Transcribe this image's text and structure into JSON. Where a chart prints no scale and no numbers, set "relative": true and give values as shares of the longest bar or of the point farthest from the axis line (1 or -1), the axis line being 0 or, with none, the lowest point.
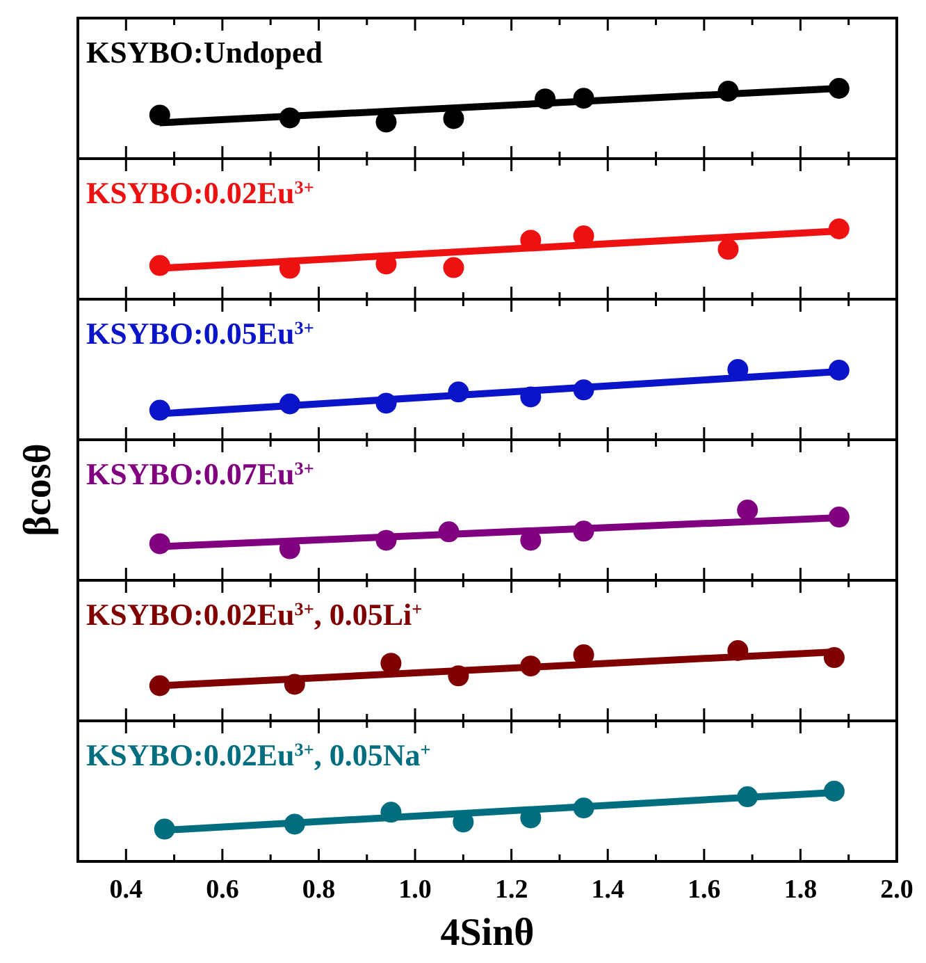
{
  "chart_data": [
    {
      "type": "scatter",
      "relative": true,
      "title": "KSYBO:Undoped",
      "marker": "circle",
      "tick_labels": false,
      "xlim": [
        0.3,
        2.0
      ],
      "xticks": [
        {
          "value": 0.3,
          "label": null
        },
        0.4,
        {
          "value": 0.5,
          "label": null
        },
        0.6,
        {
          "value": 0.7,
          "label": null
        },
        0.8,
        {
          "value": 0.9,
          "label": null
        },
        1,
        {
          "value": 1.1,
          "label": null
        },
        1.2,
        {
          "value": 1.3,
          "label": null
        },
        1.4,
        {
          "value": 1.5,
          "label": null
        },
        1.6,
        {
          "value": 1.7,
          "label": null
        },
        1.8,
        {
          "value": 1.9,
          "label": null
        },
        2
      ],
      "series": [
        {
          "color": "#000000",
          "x": [
            0.47,
            0.74,
            0.94,
            1.08,
            1.27,
            1.35,
            1.65,
            1.88
          ],
          "values": [
            0.62,
            0.58,
            0.52,
            0.57,
            0.85,
            0.86,
            0.96,
            1.0
          ]
        },
        {
          "type": "line",
          "marker": "none",
          "color": "#000000",
          "x": [
            0.47,
            1.88
          ],
          "values": [
            0.51,
            1.0
          ]
        }
      ]
    },
    {
      "type": "scatter",
      "relative": true,
      "title": "KSYBO:0.02Eu$^{3+}$",
      "marker": "circle",
      "tick_labels": false,
      "xlim": [
        0.3,
        2.0
      ],
      "xticks": [
        {
          "value": 0.3,
          "label": null
        },
        0.4,
        {
          "value": 0.5,
          "label": null
        },
        0.6,
        {
          "value": 0.7,
          "label": null
        },
        0.8,
        {
          "value": 0.9,
          "label": null
        },
        1,
        {
          "value": 1.1,
          "label": null
        },
        1.2,
        {
          "value": 1.3,
          "label": null
        },
        1.4,
        {
          "value": 1.5,
          "label": null
        },
        1.6,
        {
          "value": 1.7,
          "label": null
        },
        1.8,
        {
          "value": 1.9,
          "label": null
        },
        2
      ],
      "series": [
        {
          "color": "#ee1111",
          "x": [
            0.47,
            0.74,
            0.94,
            1.08,
            1.24,
            1.35,
            1.65,
            1.88
          ],
          "values": [
            0.48,
            0.44,
            0.5,
            0.45,
            0.84,
            0.9,
            0.71,
            1.0
          ]
        },
        {
          "type": "line",
          "marker": "none",
          "color": "#ee1111",
          "x": [
            0.47,
            1.88
          ],
          "values": [
            0.44,
            0.97
          ]
        }
      ]
    },
    {
      "type": "scatter",
      "relative": true,
      "title": "KSYBO:0.05Eu$^{3+}$",
      "marker": "circle",
      "tick_labels": false,
      "xlim": [
        0.3,
        2.0
      ],
      "xticks": [
        {
          "value": 0.3,
          "label": null
        },
        0.4,
        {
          "value": 0.5,
          "label": null
        },
        0.6,
        {
          "value": 0.7,
          "label": null
        },
        0.8,
        {
          "value": 0.9,
          "label": null
        },
        1,
        {
          "value": 1.1,
          "label": null
        },
        1.2,
        {
          "value": 1.3,
          "label": null
        },
        1.4,
        {
          "value": 1.5,
          "label": null
        },
        1.6,
        {
          "value": 1.7,
          "label": null
        },
        1.8,
        {
          "value": 1.9,
          "label": null
        },
        2
      ],
      "series": [
        {
          "color": "#0a14c8",
          "x": [
            0.47,
            0.74,
            0.94,
            1.09,
            1.24,
            1.35,
            1.67,
            1.88
          ],
          "values": [
            0.42,
            0.51,
            0.52,
            0.68,
            0.61,
            0.71,
            1.0,
            0.99
          ]
        },
        {
          "type": "line",
          "marker": "none",
          "color": "#0a14c8",
          "x": [
            0.47,
            1.88
          ],
          "values": [
            0.37,
            0.97
          ]
        }
      ]
    },
    {
      "type": "scatter",
      "relative": true,
      "title": "KSYBO:0.07Eu$^{3+}$",
      "ylabel": "βcosθ",
      "marker": "circle",
      "tick_labels": false,
      "xlim": [
        0.3,
        2.0
      ],
      "xticks": [
        {
          "value": 0.3,
          "label": null
        },
        0.4,
        {
          "value": 0.5,
          "label": null
        },
        0.6,
        {
          "value": 0.7,
          "label": null
        },
        0.8,
        {
          "value": 0.9,
          "label": null
        },
        1,
        {
          "value": 1.1,
          "label": null
        },
        1.2,
        {
          "value": 1.3,
          "label": null
        },
        1.4,
        {
          "value": 1.5,
          "label": null
        },
        1.6,
        {
          "value": 1.7,
          "label": null
        },
        1.8,
        {
          "value": 1.9,
          "label": null
        },
        2
      ],
      "series": [
        {
          "color": "#800080",
          "x": [
            0.47,
            0.74,
            0.94,
            1.07,
            1.24,
            1.35,
            1.69,
            1.88
          ],
          "values": [
            0.52,
            0.45,
            0.57,
            0.69,
            0.57,
            0.7,
            1.0,
            0.9
          ]
        },
        {
          "type": "line",
          "marker": "none",
          "color": "#800080",
          "x": [
            0.47,
            1.88
          ],
          "values": [
            0.48,
            0.89
          ]
        }
      ]
    },
    {
      "type": "scatter",
      "relative": true,
      "title": "KSYBO:0.02Eu$^{3+}$, 0.05Li$^{+}$",
      "marker": "circle",
      "tick_labels": false,
      "xlim": [
        0.3,
        2.0
      ],
      "xticks": [
        {
          "value": 0.3,
          "label": null
        },
        0.4,
        {
          "value": 0.5,
          "label": null
        },
        0.6,
        {
          "value": 0.7,
          "label": null
        },
        0.8,
        {
          "value": 0.9,
          "label": null
        },
        1,
        {
          "value": 1.1,
          "label": null
        },
        1.2,
        {
          "value": 1.3,
          "label": null
        },
        1.4,
        {
          "value": 1.5,
          "label": null
        },
        1.6,
        {
          "value": 1.7,
          "label": null
        },
        1.8,
        {
          "value": 1.9,
          "label": null
        },
        2
      ],
      "series": [
        {
          "color": "#800000",
          "x": [
            0.47,
            0.75,
            0.95,
            1.09,
            1.24,
            1.35,
            1.67,
            1.87
          ],
          "values": [
            0.5,
            0.52,
            0.82,
            0.64,
            0.78,
            0.94,
            1.0,
            0.9
          ]
        },
        {
          "type": "line",
          "marker": "none",
          "color": "#800000",
          "x": [
            0.47,
            1.87
          ],
          "values": [
            0.5,
            0.98
          ]
        }
      ]
    },
    {
      "type": "scatter",
      "relative": true,
      "title": "KSYBO:0.02Eu$^{3+}$, 0.05Na$^{+}$",
      "xlabel": "4Sinθ",
      "marker": "circle",
      "tick_labels": "x",
      "xlim": [
        0.3,
        2.0
      ],
      "xticks": [
        {
          "value": 0.3,
          "label": null
        },
        0.4,
        {
          "value": 0.5,
          "label": null
        },
        0.6,
        {
          "value": 0.7,
          "label": null
        },
        0.8,
        {
          "value": 0.9,
          "label": null
        },
        {
          "value": 1,
          "label": "1.0"
        },
        {
          "value": 1.1,
          "label": null
        },
        1.2,
        {
          "value": 1.3,
          "label": null
        },
        1.4,
        {
          "value": 1.5,
          "label": null
        },
        1.6,
        {
          "value": 1.7,
          "label": null
        },
        1.8,
        {
          "value": 1.9,
          "label": null
        },
        {
          "value": 2,
          "label": "2.0"
        }
      ],
      "series": [
        {
          "color": "#006e7e",
          "x": [
            0.48,
            0.75,
            0.95,
            1.1,
            1.24,
            1.35,
            1.69,
            1.87
          ],
          "values": [
            0.46,
            0.53,
            0.7,
            0.56,
            0.62,
            0.76,
            0.92,
            1.0
          ]
        },
        {
          "type": "line",
          "marker": "none",
          "color": "#006e7e",
          "x": [
            0.47,
            1.87
          ],
          "values": [
            0.44,
            0.98
          ]
        }
      ]
    }
  ]
}
